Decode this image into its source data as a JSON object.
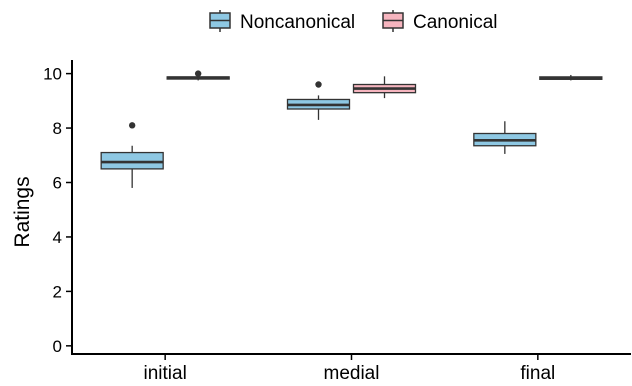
{
  "chart_data": {
    "type": "boxplot",
    "ylabel": "Ratings",
    "ylim": [
      -0.3,
      10.5
    ],
    "yticks": [
      0,
      2,
      4,
      6,
      8,
      10
    ],
    "categories": [
      "initial",
      "medial",
      "final"
    ],
    "legend_position": "top",
    "series": [
      {
        "name": "Noncanonical",
        "color": "#8ec8e3",
        "boxes": [
          {
            "whisker_low": 5.8,
            "q1": 6.5,
            "median": 6.75,
            "q3": 7.1,
            "whisker_high": 7.35,
            "outliers": [
              8.1
            ]
          },
          {
            "whisker_low": 8.3,
            "q1": 8.7,
            "median": 8.85,
            "q3": 9.05,
            "whisker_high": 9.2,
            "outliers": [
              9.6
            ]
          },
          {
            "whisker_low": 7.05,
            "q1": 7.35,
            "median": 7.55,
            "q3": 7.8,
            "whisker_high": 8.25,
            "outliers": []
          }
        ]
      },
      {
        "name": "Canonical",
        "color": "#f6b5bf",
        "boxes": [
          {
            "whisker_low": 9.75,
            "q1": 9.8,
            "median": 9.85,
            "q3": 9.88,
            "whisker_high": 9.92,
            "outliers": [
              10.0
            ]
          },
          {
            "whisker_low": 9.1,
            "q1": 9.3,
            "median": 9.45,
            "q3": 9.6,
            "whisker_high": 9.9,
            "outliers": []
          },
          {
            "whisker_low": 9.75,
            "q1": 9.79,
            "median": 9.83,
            "q3": 9.88,
            "whisker_high": 9.95,
            "outliers": []
          }
        ]
      }
    ]
  }
}
